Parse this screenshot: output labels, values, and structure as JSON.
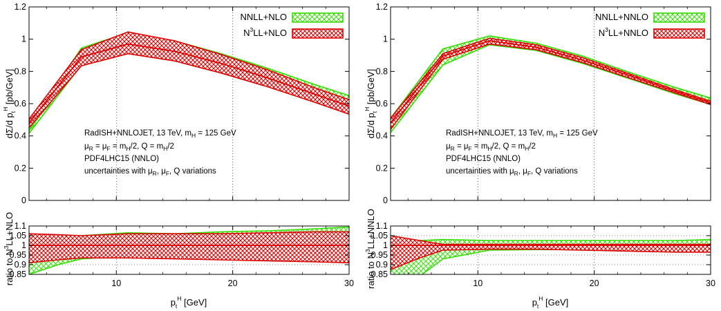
{
  "chart_data": [
    {
      "type": "line",
      "bands": [
        {
          "name": "NNLL+NLO",
          "color": "#33dd00",
          "pattern": "crosshatch",
          "x": [
            2.5,
            7,
            11,
            15,
            19,
            23,
            27,
            30
          ],
          "upper": [
            0.46,
            0.945,
            1.04,
            0.99,
            0.91,
            0.82,
            0.72,
            0.65
          ],
          "central": [
            0.435,
            0.89,
            0.975,
            0.935,
            0.855,
            0.77,
            0.68,
            0.615
          ],
          "lower": [
            0.415,
            0.84,
            0.92,
            0.875,
            0.8,
            0.72,
            0.635,
            0.57
          ]
        },
        {
          "name": "N3LL+NLO",
          "color": "#dd0000",
          "pattern": "crosshatch",
          "x": [
            2.5,
            7,
            11,
            15,
            19,
            23,
            27,
            30
          ],
          "upper": [
            0.505,
            0.935,
            1.045,
            0.99,
            0.905,
            0.81,
            0.7,
            0.625
          ],
          "central": [
            0.48,
            0.89,
            0.97,
            0.925,
            0.85,
            0.76,
            0.66,
            0.585
          ],
          "lower": [
            0.45,
            0.835,
            0.91,
            0.865,
            0.79,
            0.705,
            0.61,
            0.535
          ]
        }
      ],
      "ratio_bands": [
        {
          "name": "NNLL+NLO",
          "x": [
            2.5,
            5,
            7,
            11,
            15,
            19,
            23,
            27,
            30
          ],
          "upper": [
            1.02,
            1.04,
            1.05,
            1.065,
            1.06,
            1.07,
            1.075,
            1.085,
            1.095
          ],
          "central": [
            0.965,
            0.985,
            1.0,
            1.005,
            1.005,
            1.01,
            1.015,
            1.02,
            1.025
          ],
          "lower": [
            0.85,
            0.9,
            0.93,
            0.945,
            0.94,
            0.935,
            0.925,
            0.92,
            0.915
          ]
        },
        {
          "name": "N3LL+NLO",
          "x": [
            2.5,
            5,
            7,
            11,
            15,
            19,
            23,
            27,
            30
          ],
          "upper": [
            1.06,
            1.055,
            1.05,
            1.06,
            1.06,
            1.06,
            1.065,
            1.07,
            1.07
          ],
          "central": [
            1,
            1,
            1,
            1,
            1,
            1,
            1,
            1,
            1
          ],
          "lower": [
            0.91,
            0.925,
            0.935,
            0.935,
            0.93,
            0.925,
            0.92,
            0.915,
            0.91
          ]
        }
      ],
      "legend": [
        {
          "label": "NNLL+NLO"
        },
        {
          "label": "N³LL+NLO",
          "base": "N",
          "sup": "3",
          "rest": "LL+NLO"
        }
      ],
      "ylabel": "dΣ/d pₜH [pb/GeV]",
      "ratio_ylabel": "ratio to N³LL+NLO",
      "xlabel": "pₜH [GeV]",
      "ratio_ylabel_parts": {
        "pre": "ratio to N",
        "sup": "3",
        "post": "LL+NLO"
      },
      "xlim": [
        2.5,
        30
      ],
      "ylim": [
        0,
        1.2
      ],
      "ratio_ylim": [
        0.85,
        1.1
      ],
      "yticks": [
        "0",
        "0.2",
        "0.4",
        "0.6",
        "0.8",
        "1",
        "1.2"
      ],
      "ratio_yticks": [
        "0.85",
        "0.9",
        "0.95",
        "1",
        "1.05",
        "1.1"
      ],
      "xticks": [
        "10",
        "20",
        "30"
      ],
      "grid": true,
      "legend_position": "top-right",
      "annotations": [
        "RadISH+NNLOJET, 13 TeV, mH = 125 GeV",
        "μR = μF = mH/2, Q = mH/2",
        "PDF4LHC15 (NNLO)",
        "uncertainties with μR, μF, Q variations"
      ]
    },
    {
      "type": "line",
      "bands": [
        {
          "name": "NNLL+NNLO",
          "color": "#33dd00",
          "pattern": "crosshatch",
          "x": [
            2.5,
            7,
            11,
            15,
            19,
            23,
            27,
            30
          ],
          "upper": [
            0.51,
            0.94,
            1.02,
            0.975,
            0.895,
            0.795,
            0.7,
            0.635
          ],
          "central": [
            0.46,
            0.895,
            0.995,
            0.955,
            0.875,
            0.775,
            0.68,
            0.615
          ],
          "lower": [
            0.42,
            0.84,
            0.965,
            0.93,
            0.85,
            0.755,
            0.66,
            0.595
          ]
        },
        {
          "name": "N3LL+NNLO",
          "color": "#dd0000",
          "pattern": "crosshatch",
          "x": [
            2.5,
            7,
            11,
            15,
            19,
            23,
            27,
            30
          ],
          "upper": [
            0.51,
            0.91,
            1.005,
            0.965,
            0.885,
            0.785,
            0.685,
            0.615
          ],
          "central": [
            0.48,
            0.895,
            0.99,
            0.95,
            0.87,
            0.775,
            0.675,
            0.605
          ],
          "lower": [
            0.44,
            0.875,
            0.97,
            0.935,
            0.855,
            0.76,
            0.665,
            0.595
          ]
        }
      ],
      "ratio_bands": [
        {
          "name": "NNLL+NNLO",
          "x": [
            2.5,
            5,
            7,
            11,
            15,
            19,
            23,
            27,
            30
          ],
          "upper": [
            1.02,
            1.025,
            1.03,
            1.025,
            1.025,
            1.025,
            1.025,
            1.025,
            1.03
          ],
          "central": [
            0.955,
            0.965,
            0.985,
            0.99,
            0.995,
            0.995,
            0.995,
            0.995,
            1.0
          ],
          "lower": [
            0.84,
            0.84,
            0.93,
            0.975,
            0.978,
            0.978,
            0.975,
            0.975,
            0.975
          ]
        },
        {
          "name": "N3LL+NNLO",
          "x": [
            2.5,
            5,
            7,
            11,
            15,
            19,
            23,
            27,
            30
          ],
          "upper": [
            1.05,
            1.025,
            1.005,
            1.005,
            1.005,
            1.005,
            1.005,
            1.005,
            1.005
          ],
          "central": [
            1,
            1,
            1,
            1,
            1,
            1,
            1,
            1,
            1
          ],
          "lower": [
            0.875,
            0.935,
            0.975,
            0.98,
            0.98,
            0.975,
            0.97,
            0.965,
            0.965
          ]
        }
      ],
      "legend": [
        {
          "label": "NNLL+NNLO"
        },
        {
          "label": "N³LL+NNLO",
          "base": "N",
          "sup": "3",
          "rest": "LL+NNLO"
        }
      ],
      "ylabel": "dΣ/d pₜH [pb/GeV]",
      "ratio_ylabel": "ratio to N³LL+NNLO",
      "xlabel": "pₜH [GeV]",
      "ratio_ylabel_parts": {
        "pre": "ratio to N",
        "sup": "3",
        "post": "LL+NNLO"
      },
      "xlim": [
        2.5,
        30
      ],
      "ylim": [
        0,
        1.2
      ],
      "ratio_ylim": [
        0.85,
        1.1
      ],
      "yticks": [
        "0",
        "0.2",
        "0.4",
        "0.6",
        "0.8",
        "1",
        "1.2"
      ],
      "ratio_yticks": [
        "0.85",
        "0.9",
        "0.95",
        "1",
        "1.05",
        "1.1"
      ],
      "xticks": [
        "10",
        "20",
        "30"
      ],
      "grid": true,
      "legend_position": "top-right",
      "annotations": [
        "RadISH+NNLOJET, 13 TeV, mH = 125 GeV",
        "μR = μF = mH/2, Q = mH/2",
        "PDF4LHC15 (NNLO)",
        "uncertainties with μR, μF, Q variations"
      ]
    }
  ]
}
